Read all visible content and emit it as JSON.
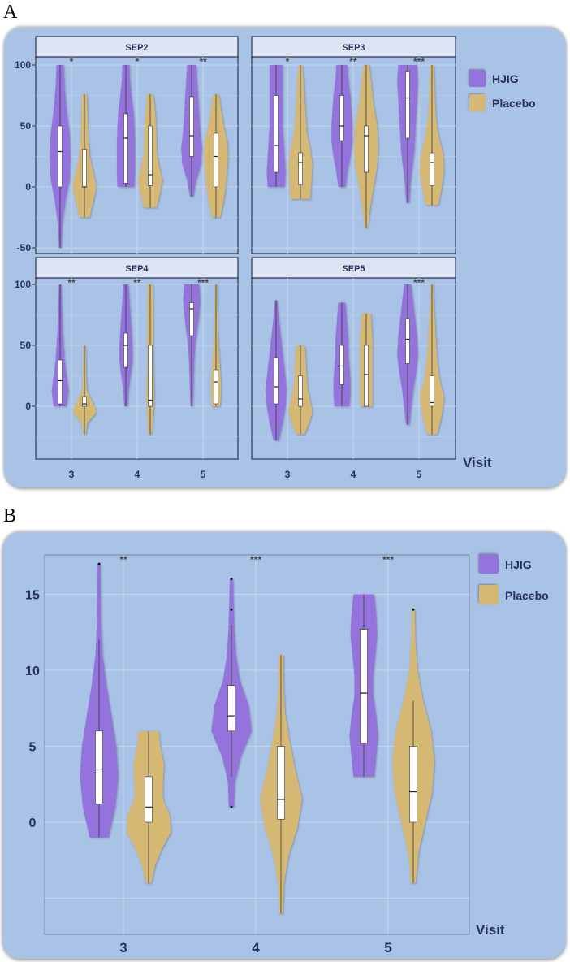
{
  "panel_labels": {
    "a": "A",
    "b": "B"
  },
  "colors": {
    "HJIG": "#9473dd",
    "Placebo": "#d5b874",
    "background": "#a9c3e6",
    "header": "#dde4f3",
    "axis_text": "#27305a"
  },
  "chart_data": [
    {
      "id": "A",
      "type": "violin",
      "facets": [
        "SEP2",
        "SEP3",
        "SEP4",
        "SEP5"
      ],
      "xlabel": "Visit",
      "categories": [
        "3",
        "4",
        "5"
      ],
      "yticks": [
        "100",
        "50",
        "0",
        "-50"
      ],
      "ytick_values": [
        100,
        50,
        0,
        -50
      ],
      "legend": [
        "HJIG",
        "Placebo"
      ],
      "legend_position": "right",
      "grid": true,
      "data": {
        "SEP2": {
          "significance": [
            "*",
            "*",
            "**"
          ],
          "HJIG": [
            {
              "min": -50,
              "q1": 0,
              "median": 29,
              "q3": 50,
              "max": 100,
              "density": [
                0.05,
                0.15,
                0.45,
                0.9,
                1,
                0.9,
                0.6,
                0.4,
                0.3
              ]
            },
            {
              "min": 0,
              "q1": 3,
              "median": 40,
              "q3": 60,
              "max": 100,
              "density": [
                0.8,
                0.85,
                0.85,
                0.85,
                0.8,
                0.7,
                0.5,
                0.35,
                0.3
              ]
            },
            {
              "min": -8,
              "q1": 25,
              "median": 42,
              "q3": 74,
              "max": 100,
              "density": [
                0.1,
                0.4,
                0.9,
                1,
                0.8,
                0.7,
                0.6,
                0.5,
                0.4
              ]
            }
          ],
          "Placebo": [
            {
              "min": -25,
              "q1": 0,
              "median": 0,
              "q3": 31,
              "max": 76,
              "density": [
                0.4,
                0.7,
                1,
                0.7,
                0.4,
                0.3,
                0.25,
                0.2,
                0.15
              ]
            },
            {
              "min": -17,
              "q1": 1,
              "median": 10,
              "q3": 50,
              "max": 76,
              "density": [
                0.5,
                0.8,
                1,
                0.7,
                0.5,
                0.5,
                0.45,
                0.35,
                0.2
              ]
            },
            {
              "min": -25,
              "q1": 0,
              "median": 25,
              "q3": 44,
              "max": 76,
              "density": [
                0.3,
                0.6,
                0.8,
                0.9,
                1,
                0.9,
                0.6,
                0.4,
                0.2
              ]
            }
          ]
        },
        "SEP3": {
          "significance": [
            "*",
            "**",
            "***"
          ],
          "HJIG": [
            {
              "min": 0,
              "q1": 12,
              "median": 34,
              "q3": 75,
              "max": 100,
              "density": [
                0.8,
                0.9,
                0.8,
                0.7,
                0.6,
                0.6,
                0.6,
                0.6,
                0.6
              ]
            },
            {
              "min": 0,
              "q1": 38,
              "median": 50,
              "q3": 75,
              "max": 100,
              "density": [
                0.3,
                0.5,
                0.8,
                1,
                1,
                0.9,
                0.8,
                0.6,
                0.5
              ]
            },
            {
              "min": -13,
              "q1": 40,
              "median": 73,
              "q3": 95,
              "max": 100,
              "density": [
                0.1,
                0.2,
                0.4,
                0.6,
                0.7,
                0.8,
                0.9,
                1,
                0.9
              ]
            }
          ],
          "Placebo": [
            {
              "min": -10,
              "q1": 2,
              "median": 20,
              "q3": 28,
              "max": 100,
              "density": [
                0.8,
                0.9,
                1,
                0.8,
                0.5,
                0.4,
                0.3,
                0.25,
                0.1
              ]
            },
            {
              "min": -33,
              "q1": 12,
              "median": 42,
              "q3": 50,
              "max": 100,
              "density": [
                0.1,
                0.3,
                0.6,
                0.9,
                1,
                0.9,
                0.6,
                0.4,
                0.2
              ]
            },
            {
              "min": -15,
              "q1": 1,
              "median": 20,
              "q3": 28,
              "max": 100,
              "density": [
                0.5,
                0.8,
                1,
                0.9,
                0.5,
                0.3,
                0.2,
                0.15,
                0.1
              ]
            }
          ]
        },
        "SEP4": {
          "significance": [
            "**",
            "**",
            "***"
          ],
          "HJIG": [
            {
              "min": 0,
              "q1": 2,
              "median": 21,
              "q3": 38,
              "max": 100,
              "density": [
                0.6,
                0.8,
                0.6,
                0.4,
                0.3,
                0.2,
                0.15,
                0.1,
                0.05
              ]
            },
            {
              "min": 0,
              "q1": 32,
              "median": 50,
              "q3": 60,
              "max": 100,
              "density": [
                0.1,
                0.2,
                0.4,
                0.6,
                0.6,
                0.5,
                0.4,
                0.3,
                0.2
              ]
            },
            {
              "min": 0,
              "q1": 58,
              "median": 80,
              "q3": 85,
              "max": 100,
              "density": [
                0.05,
                0.1,
                0.15,
                0.2,
                0.3,
                0.5,
                0.7,
                0.8,
                0.7
              ]
            }
          ],
          "Placebo": [
            {
              "min": -23,
              "q1": 0,
              "median": 2,
              "q3": 8,
              "max": 50,
              "density": [
                0.05,
                0.2,
                1,
                0.6,
                0.15,
                0.1,
                0.08,
                0.05,
                0.03
              ]
            },
            {
              "min": -23,
              "q1": 0,
              "median": 5,
              "q3": 50,
              "max": 100,
              "density": [
                0.1,
                0.2,
                0.3,
                0.25,
                0.2,
                0.2,
                0.2,
                0.2,
                0.15
              ]
            },
            {
              "min": 0,
              "q1": 2,
              "median": 20,
              "q3": 30,
              "max": 100,
              "density": [
                0.3,
                0.4,
                0.35,
                0.25,
                0.15,
                0.1,
                0.08,
                0.06,
                0.05
              ]
            }
          ]
        },
        "SEP5": {
          "significance": [
            "",
            "",
            "***"
          ],
          "HJIG": [
            {
              "min": -28,
              "q1": 2,
              "median": 16,
              "q3": 40,
              "max": 87,
              "density": [
                0.2,
                0.6,
                0.9,
                1,
                0.8,
                0.6,
                0.4,
                0.2,
                0.05
              ]
            },
            {
              "min": 0,
              "q1": 18,
              "median": 33,
              "q3": 50,
              "max": 85,
              "density": [
                0.7,
                0.8,
                0.8,
                0.7,
                0.6,
                0.6,
                0.5,
                0.4,
                0.3
              ]
            },
            {
              "min": -15,
              "q1": 35,
              "median": 55,
              "q3": 72,
              "max": 100,
              "density": [
                0.1,
                0.3,
                0.5,
                0.8,
                1,
                0.9,
                0.7,
                0.5,
                0.3
              ]
            }
          ],
          "Placebo": [
            {
              "min": -23,
              "q1": 0,
              "median": 6,
              "q3": 25,
              "max": 50,
              "density": [
                0.3,
                0.7,
                1,
                0.8,
                0.6,
                0.5,
                0.45,
                0.4,
                0.3
              ]
            },
            {
              "min": 0,
              "q1": 0,
              "median": 26,
              "q3": 50,
              "max": 76,
              "density": [
                0.5,
                0.5,
                0.5,
                0.5,
                0.5,
                0.5,
                0.5,
                0.4,
                0.35
              ]
            },
            {
              "min": -23,
              "q1": 0,
              "median": 3,
              "q3": 25,
              "max": 100,
              "density": [
                0.4,
                0.8,
                1,
                0.6,
                0.4,
                0.3,
                0.2,
                0.1,
                0.05
              ]
            }
          ]
        }
      }
    },
    {
      "id": "B",
      "type": "violin",
      "xlabel": "Visit",
      "categories": [
        "3",
        "4",
        "5"
      ],
      "yticks": [
        "15",
        "10",
        "5",
        "0"
      ],
      "ytick_values": [
        15,
        10,
        5,
        0
      ],
      "gridlines": [
        15,
        10,
        5,
        0,
        -5
      ],
      "ylim": [
        -7.3,
        19
      ],
      "legend": [
        "HJIG",
        "Placebo"
      ],
      "legend_position": "top-right",
      "grid": true,
      "significance": [
        "**",
        "***",
        "***"
      ],
      "HJIG": [
        {
          "min": -1,
          "q1": 1.2,
          "median": 3.5,
          "q3": 6,
          "max": 17,
          "whisker_low": -1,
          "whisker_high": 12,
          "outliers": [
            17
          ],
          "density": [
            0.45,
            0.8,
            0.95,
            0.85,
            0.6,
            0.35,
            0.15,
            0.08,
            0.06,
            0.04
          ]
        },
        {
          "min": 1,
          "q1": 6,
          "median": 7,
          "q3": 9,
          "max": 16,
          "whisker_low": 3,
          "whisker_high": 13,
          "outliers": [
            1,
            14,
            16
          ],
          "density": [
            0.1,
            0.15,
            0.45,
            1,
            0.85,
            0.4,
            0.2,
            0.12,
            0.08,
            0.05
          ]
        },
        {
          "min": 3,
          "q1": 5.2,
          "median": 8.5,
          "q3": 12.7,
          "max": 15,
          "whisker_low": 3,
          "whisker_high": 15,
          "outliers": [],
          "density": [
            0.5,
            0.6,
            0.7,
            0.6,
            0.45,
            0.45,
            0.55,
            0.65,
            0.6,
            0.5
          ]
        }
      ],
      "Placebo": [
        {
          "min": -4,
          "q1": 0,
          "median": 1,
          "q3": 3,
          "max": 6,
          "whisker_low": -4,
          "whisker_high": 6,
          "outliers": [],
          "density": [
            0.1,
            0.25,
            0.55,
            0.95,
            0.9,
            0.6,
            0.6,
            0.65,
            0.5,
            0.4
          ]
        },
        {
          "min": -6,
          "q1": 0.2,
          "median": 1.5,
          "q3": 5,
          "max": 11,
          "whisker_low": -6,
          "whisker_high": 11,
          "outliers": [],
          "density": [
            0.05,
            0.1,
            0.3,
            0.7,
            0.9,
            0.6,
            0.35,
            0.15,
            0.08,
            0.08
          ]
        },
        {
          "min": -4,
          "q1": 0,
          "median": 2,
          "q3": 5,
          "max": 14,
          "whisker_low": -4,
          "whisker_high": 8,
          "outliers": [
            14
          ],
          "density": [
            0.08,
            0.2,
            0.5,
            0.8,
            0.9,
            0.75,
            0.4,
            0.15,
            0.06,
            0.04
          ]
        }
      ]
    }
  ]
}
